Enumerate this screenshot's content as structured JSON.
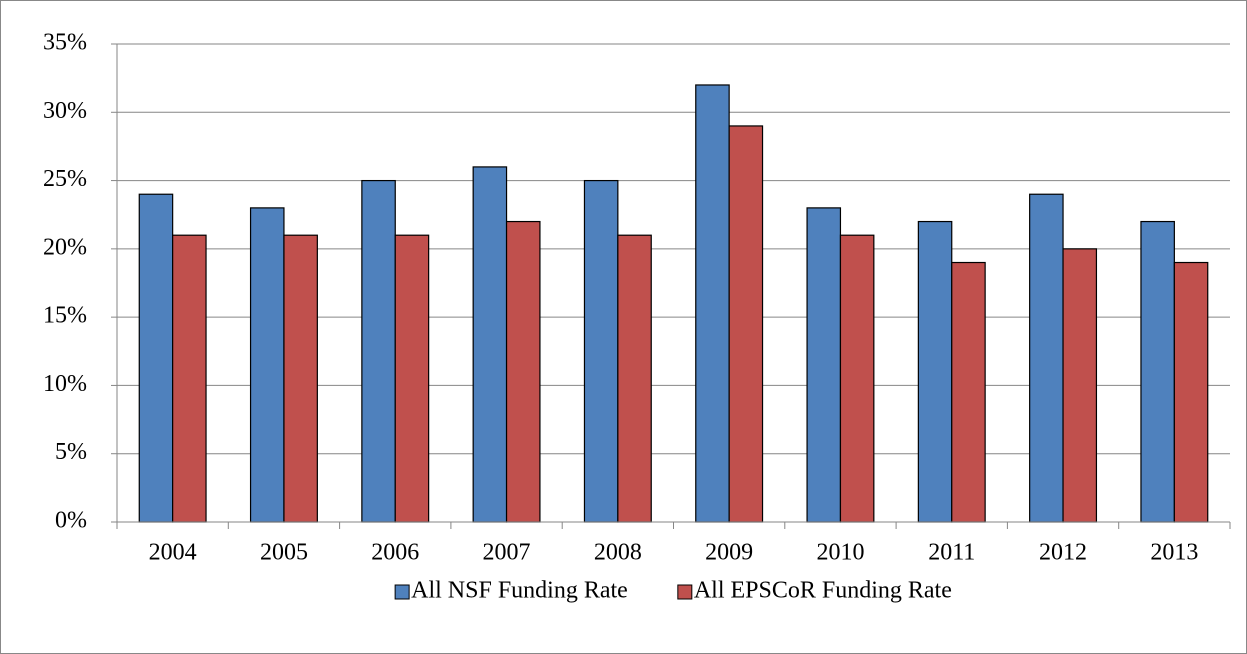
{
  "chart_data": {
    "type": "bar",
    "categories": [
      "2004",
      "2005",
      "2006",
      "2007",
      "2008",
      "2009",
      "2010",
      "2011",
      "2012",
      "2013"
    ],
    "series": [
      {
        "name": "All NSF Funding Rate",
        "color": "#4f81bd",
        "values": [
          24,
          23,
          25,
          26,
          25,
          32,
          23,
          22,
          24,
          22
        ]
      },
      {
        "name": "All EPSCoR Funding Rate",
        "color": "#c0504d",
        "values": [
          21,
          21,
          21,
          22,
          21,
          29,
          21,
          19,
          20,
          19
        ]
      }
    ],
    "ylim": [
      0,
      35
    ],
    "yticks": [
      {
        "value": 0,
        "label": "0%"
      },
      {
        "value": 5,
        "label": "5%"
      },
      {
        "value": 10,
        "label": "10%"
      },
      {
        "value": 15,
        "label": "15%"
      },
      {
        "value": 20,
        "label": "20%"
      },
      {
        "value": 25,
        "label": "25%"
      },
      {
        "value": 30,
        "label": "30%"
      },
      {
        "value": 35,
        "label": "35%"
      }
    ],
    "grid": true,
    "legend": "bottom"
  }
}
